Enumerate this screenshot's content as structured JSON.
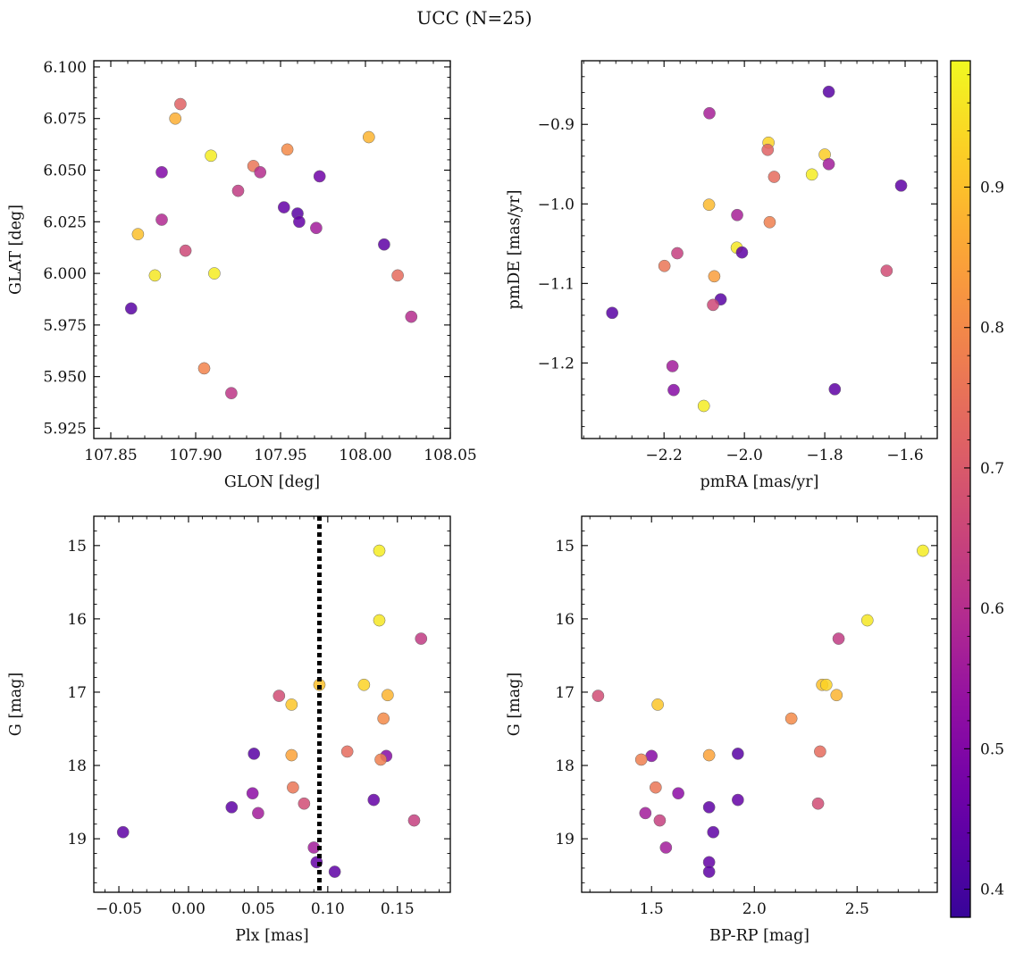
{
  "suptitle": "UCC (N=25)",
  "colorbar": {
    "colormap": "plasma",
    "range": [
      0.38,
      0.99
    ],
    "ticks": [
      0.4,
      0.5,
      0.6,
      0.7,
      0.8,
      0.9
    ],
    "tick_labels": [
      "0.4",
      "0.5",
      "0.6",
      "0.7",
      "0.8",
      "0.9"
    ]
  },
  "chart_data": [
    {
      "type": "scatter",
      "xlabel": "GLON [deg]",
      "ylabel": "GLAT [deg]",
      "xlim": [
        107.84,
        108.05
      ],
      "ylim": [
        5.92,
        6.103
      ],
      "y_inverted": false,
      "xticks": [
        107.85,
        107.9,
        107.95,
        108.0,
        108.05
      ],
      "xtick_labels": [
        "107.85",
        "107.90",
        "107.95",
        "108.00",
        "108.05"
      ],
      "yticks": [
        5.925,
        5.95,
        5.975,
        6.0,
        6.025,
        6.05,
        6.075,
        6.1
      ],
      "ytick_labels": [
        "5.925",
        "5.950",
        "5.975",
        "6.000",
        "6.025",
        "6.050",
        "6.075",
        "6.100"
      ],
      "points": [
        {
          "x": 107.891,
          "y": 6.082,
          "c": 0.72
        },
        {
          "x": 107.888,
          "y": 6.075,
          "c": 0.87
        },
        {
          "x": 107.88,
          "y": 6.049,
          "c": 0.5
        },
        {
          "x": 107.909,
          "y": 6.057,
          "c": 0.97
        },
        {
          "x": 107.934,
          "y": 6.052,
          "c": 0.76
        },
        {
          "x": 107.954,
          "y": 6.06,
          "c": 0.8
        },
        {
          "x": 108.002,
          "y": 6.066,
          "c": 0.88
        },
        {
          "x": 107.938,
          "y": 6.049,
          "c": 0.6
        },
        {
          "x": 107.925,
          "y": 6.04,
          "c": 0.63
        },
        {
          "x": 107.973,
          "y": 6.047,
          "c": 0.47
        },
        {
          "x": 107.952,
          "y": 6.032,
          "c": 0.45
        },
        {
          "x": 107.96,
          "y": 6.029,
          "c": 0.43
        },
        {
          "x": 107.961,
          "y": 6.025,
          "c": 0.45
        },
        {
          "x": 107.88,
          "y": 6.026,
          "c": 0.59
        },
        {
          "x": 107.866,
          "y": 6.019,
          "c": 0.9
        },
        {
          "x": 107.971,
          "y": 6.022,
          "c": 0.56
        },
        {
          "x": 108.011,
          "y": 6.014,
          "c": 0.44
        },
        {
          "x": 107.894,
          "y": 6.011,
          "c": 0.66
        },
        {
          "x": 107.876,
          "y": 5.999,
          "c": 0.96
        },
        {
          "x": 107.911,
          "y": 6.0,
          "c": 0.97
        },
        {
          "x": 108.019,
          "y": 5.999,
          "c": 0.74
        },
        {
          "x": 107.862,
          "y": 5.983,
          "c": 0.43
        },
        {
          "x": 108.027,
          "y": 5.979,
          "c": 0.6
        },
        {
          "x": 107.905,
          "y": 5.954,
          "c": 0.79
        },
        {
          "x": 107.921,
          "y": 5.942,
          "c": 0.62
        }
      ]
    },
    {
      "type": "scatter",
      "xlabel": "pmRA [mas/yr]",
      "ylabel": "pmDE [mas/yr]",
      "xlim": [
        -2.405,
        -1.52
      ],
      "ylim": [
        -1.295,
        -0.82
      ],
      "y_inverted": false,
      "xticks": [
        -2.2,
        -2.0,
        -1.8,
        -1.6
      ],
      "xtick_labels": [
        "−2.2",
        "−2.0",
        "−1.8",
        "−1.6"
      ],
      "yticks": [
        -1.2,
        -1.1,
        -1.0,
        -0.9
      ],
      "ytick_labels": [
        "−1.2",
        "−1.1",
        "−1.0",
        "−0.9"
      ],
      "points": [
        {
          "x": -1.79,
          "y": -0.859,
          "c": 0.43
        },
        {
          "x": -2.087,
          "y": -0.886,
          "c": 0.57
        },
        {
          "x": -1.94,
          "y": -0.923,
          "c": 0.93
        },
        {
          "x": -1.942,
          "y": -0.932,
          "c": 0.72
        },
        {
          "x": -1.8,
          "y": -0.938,
          "c": 0.92
        },
        {
          "x": -1.79,
          "y": -0.95,
          "c": 0.56
        },
        {
          "x": -1.832,
          "y": -0.963,
          "c": 0.97
        },
        {
          "x": -1.926,
          "y": -0.966,
          "c": 0.74
        },
        {
          "x": -1.61,
          "y": -0.977,
          "c": 0.44
        },
        {
          "x": -2.088,
          "y": -1.001,
          "c": 0.89
        },
        {
          "x": -2.018,
          "y": -1.014,
          "c": 0.57
        },
        {
          "x": -1.937,
          "y": -1.023,
          "c": 0.78
        },
        {
          "x": -2.019,
          "y": -1.055,
          "c": 0.96
        },
        {
          "x": -2.006,
          "y": -1.061,
          "c": 0.44
        },
        {
          "x": -2.167,
          "y": -1.062,
          "c": 0.64
        },
        {
          "x": -2.199,
          "y": -1.078,
          "c": 0.76
        },
        {
          "x": -1.646,
          "y": -1.084,
          "c": 0.67
        },
        {
          "x": -2.075,
          "y": -1.091,
          "c": 0.84
        },
        {
          "x": -2.059,
          "y": -1.12,
          "c": 0.43
        },
        {
          "x": -2.078,
          "y": -1.127,
          "c": 0.66
        },
        {
          "x": -2.329,
          "y": -1.137,
          "c": 0.43
        },
        {
          "x": -2.179,
          "y": -1.204,
          "c": 0.56
        },
        {
          "x": -1.775,
          "y": -1.233,
          "c": 0.44
        },
        {
          "x": -2.176,
          "y": -1.234,
          "c": 0.51
        },
        {
          "x": -2.101,
          "y": -1.254,
          "c": 0.97
        }
      ]
    },
    {
      "type": "scatter",
      "xlabel": "Plx [mas]",
      "ylabel": "G [mag]",
      "xlim": [
        -0.068,
        0.188
      ],
      "ylim": [
        19.73,
        14.6
      ],
      "y_inverted": true,
      "xticks": [
        -0.05,
        0.0,
        0.05,
        0.1,
        0.15
      ],
      "xtick_labels": [
        "−0.05",
        "0.00",
        "0.05",
        "0.10",
        "0.15"
      ],
      "yticks": [
        15,
        16,
        17,
        18,
        19
      ],
      "ytick_labels": [
        "15",
        "16",
        "17",
        "18",
        "19"
      ],
      "vline": {
        "x": 0.094,
        "style": "dotted"
      },
      "points": [
        {
          "x": 0.137,
          "y": 15.07,
          "c": 0.97
        },
        {
          "x": 0.137,
          "y": 16.02,
          "c": 0.96
        },
        {
          "x": 0.167,
          "y": 16.27,
          "c": 0.63
        },
        {
          "x": 0.065,
          "y": 17.05,
          "c": 0.67
        },
        {
          "x": 0.094,
          "y": 16.9,
          "c": 0.9
        },
        {
          "x": 0.126,
          "y": 16.9,
          "c": 0.93
        },
        {
          "x": 0.143,
          "y": 17.04,
          "c": 0.88
        },
        {
          "x": 0.074,
          "y": 17.17,
          "c": 0.91
        },
        {
          "x": 0.14,
          "y": 17.36,
          "c": 0.8
        },
        {
          "x": 0.047,
          "y": 17.84,
          "c": 0.43
        },
        {
          "x": 0.074,
          "y": 17.86,
          "c": 0.85
        },
        {
          "x": 0.114,
          "y": 17.81,
          "c": 0.74
        },
        {
          "x": 0.142,
          "y": 17.87,
          "c": 0.51
        },
        {
          "x": 0.138,
          "y": 17.92,
          "c": 0.78
        },
        {
          "x": 0.075,
          "y": 18.3,
          "c": 0.76
        },
        {
          "x": 0.046,
          "y": 18.38,
          "c": 0.52
        },
        {
          "x": 0.031,
          "y": 18.57,
          "c": 0.44
        },
        {
          "x": 0.083,
          "y": 18.52,
          "c": 0.67
        },
        {
          "x": 0.133,
          "y": 18.47,
          "c": 0.45
        },
        {
          "x": 0.05,
          "y": 18.65,
          "c": 0.56
        },
        {
          "x": 0.162,
          "y": 18.75,
          "c": 0.64
        },
        {
          "x": -0.047,
          "y": 18.91,
          "c": 0.44
        },
        {
          "x": 0.09,
          "y": 19.12,
          "c": 0.56
        },
        {
          "x": 0.092,
          "y": 19.32,
          "c": 0.45
        },
        {
          "x": 0.105,
          "y": 19.45,
          "c": 0.44
        }
      ]
    },
    {
      "type": "scatter",
      "xlabel": "BP-RP [mag]",
      "ylabel": "G [mag]",
      "xlim": [
        1.16,
        2.89
      ],
      "ylim": [
        19.73,
        14.6
      ],
      "y_inverted": true,
      "xticks": [
        1.5,
        2.0,
        2.5
      ],
      "xtick_labels": [
        "1.5",
        "2.0",
        "2.5"
      ],
      "yticks": [
        15,
        16,
        17,
        18,
        19
      ],
      "ytick_labels": [
        "15",
        "16",
        "17",
        "18",
        "19"
      ],
      "points": [
        {
          "x": 2.82,
          "y": 15.07,
          "c": 0.97
        },
        {
          "x": 2.55,
          "y": 16.02,
          "c": 0.96
        },
        {
          "x": 2.41,
          "y": 16.27,
          "c": 0.63
        },
        {
          "x": 1.24,
          "y": 17.05,
          "c": 0.67
        },
        {
          "x": 2.33,
          "y": 16.9,
          "c": 0.9
        },
        {
          "x": 2.35,
          "y": 16.9,
          "c": 0.93
        },
        {
          "x": 2.4,
          "y": 17.04,
          "c": 0.88
        },
        {
          "x": 1.53,
          "y": 17.17,
          "c": 0.91
        },
        {
          "x": 2.18,
          "y": 17.36,
          "c": 0.8
        },
        {
          "x": 1.92,
          "y": 17.84,
          "c": 0.43
        },
        {
          "x": 1.78,
          "y": 17.86,
          "c": 0.85
        },
        {
          "x": 2.32,
          "y": 17.81,
          "c": 0.74
        },
        {
          "x": 1.5,
          "y": 17.87,
          "c": 0.51
        },
        {
          "x": 1.45,
          "y": 17.92,
          "c": 0.78
        },
        {
          "x": 1.52,
          "y": 18.3,
          "c": 0.76
        },
        {
          "x": 1.63,
          "y": 18.38,
          "c": 0.52
        },
        {
          "x": 1.78,
          "y": 18.57,
          "c": 0.44
        },
        {
          "x": 2.31,
          "y": 18.52,
          "c": 0.67
        },
        {
          "x": 1.92,
          "y": 18.47,
          "c": 0.45
        },
        {
          "x": 1.47,
          "y": 18.65,
          "c": 0.56
        },
        {
          "x": 1.54,
          "y": 18.75,
          "c": 0.64
        },
        {
          "x": 1.8,
          "y": 18.91,
          "c": 0.44
        },
        {
          "x": 1.57,
          "y": 19.12,
          "c": 0.56
        },
        {
          "x": 1.78,
          "y": 19.32,
          "c": 0.45
        },
        {
          "x": 1.78,
          "y": 19.45,
          "c": 0.44
        }
      ]
    }
  ]
}
